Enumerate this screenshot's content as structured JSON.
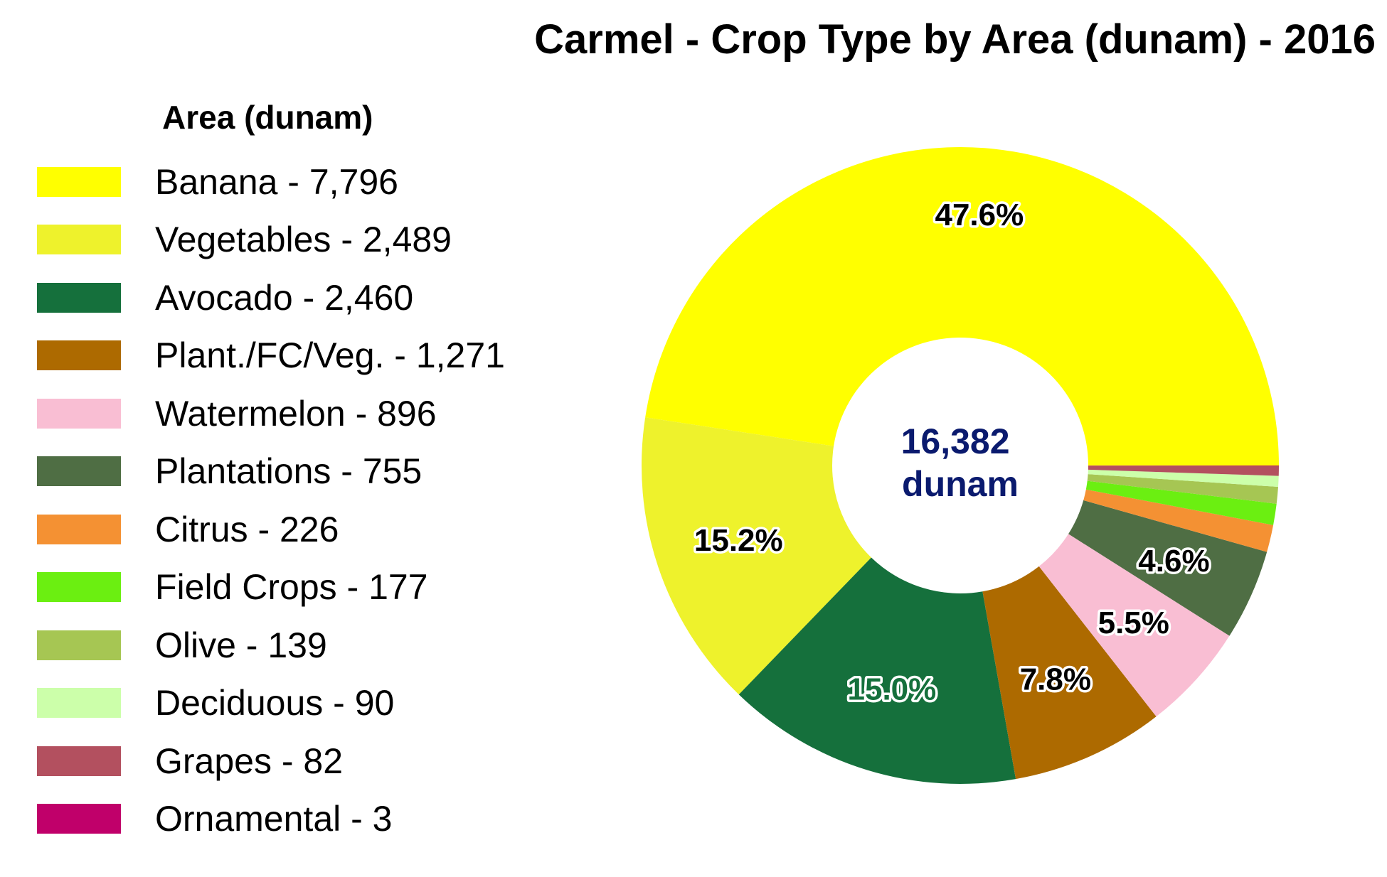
{
  "chart_data": {
    "type": "pie",
    "title": "Carmel - Crop Type by Area (dunam) - 2016",
    "legend_title": "Area (dunam)",
    "legend_position": "left",
    "center_label": [
      "16,382",
      "dunam"
    ],
    "slices": [
      {
        "label": "Banana - 7,796",
        "value": 7796,
        "percent_label": "47.6%",
        "color": "#ffff00"
      },
      {
        "label": "Vegetables - 2,489",
        "value": 2489,
        "percent_label": "15.2%",
        "color": "#eef22c"
      },
      {
        "label": "Avocado - 2,460",
        "value": 2460,
        "percent_label": "15.0%",
        "color": "#15703c"
      },
      {
        "label": "Plant./FC/Veg. - 1,271",
        "value": 1271,
        "percent_label": "7.8%",
        "color": "#ad6a00"
      },
      {
        "label": "Watermelon - 896",
        "value": 896,
        "percent_label": "5.5%",
        "color": "#f9bed3"
      },
      {
        "label": "Plantations - 755",
        "value": 755,
        "percent_label": "4.6%",
        "color": "#4f6e44"
      },
      {
        "label": "Citrus - 226",
        "value": 226,
        "percent_label": "",
        "color": "#f49133"
      },
      {
        "label": "Field Crops - 177",
        "value": 177,
        "percent_label": "",
        "color": "#6bef11"
      },
      {
        "label": "Olive - 139",
        "value": 139,
        "percent_label": "",
        "color": "#a6c653"
      },
      {
        "label": "Deciduous - 90",
        "value": 90,
        "percent_label": "",
        "color": "#ccffaa"
      },
      {
        "label": "Grapes - 82",
        "value": 82,
        "percent_label": "",
        "color": "#b3505f"
      },
      {
        "label": "Ornamental - 3",
        "value": 3,
        "percent_label": "",
        "color": "#c0006a"
      }
    ],
    "text_colors": {
      "percent": "#000000",
      "percent_dark_slice": "#15703c",
      "center": "#0a1a6e"
    }
  }
}
